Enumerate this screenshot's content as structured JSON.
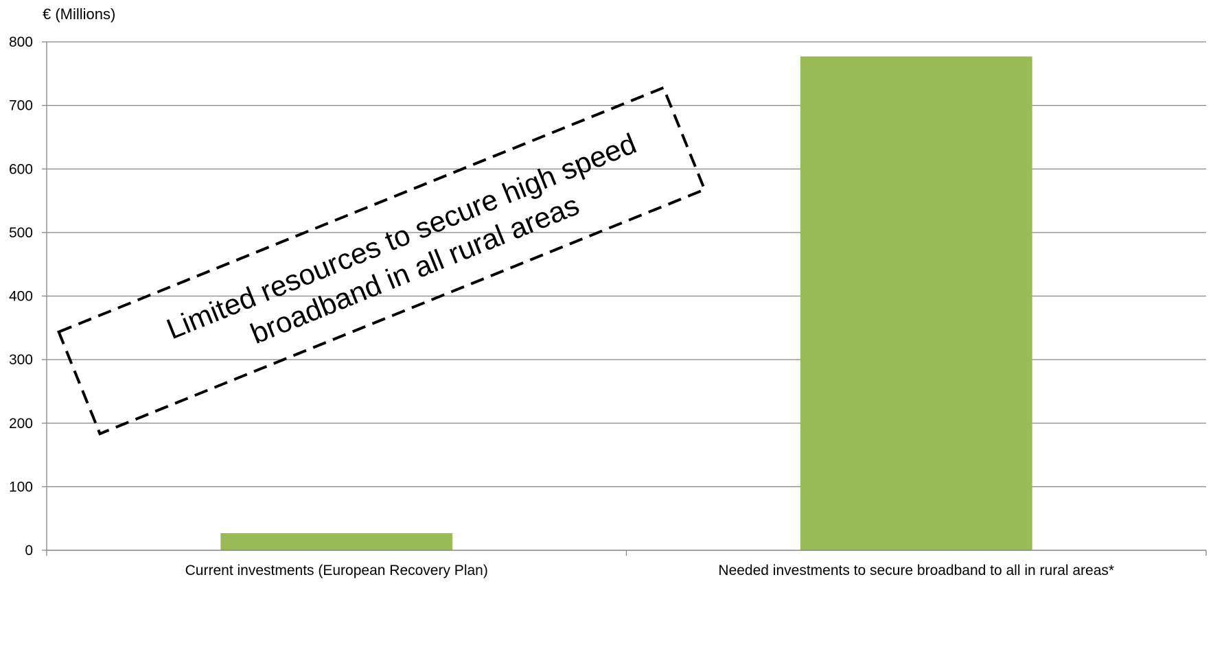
{
  "chart_data": {
    "type": "bar",
    "categories": [
      "Current investments (European Recovery Plan)",
      "Needed investments to secure broadband to all in rural areas*"
    ],
    "values": [
      27,
      777
    ],
    "title": "",
    "ylabel": "€  (Millions)",
    "xlabel": "",
    "ylim": [
      0,
      800
    ],
    "yticks": [
      0,
      100,
      200,
      300,
      400,
      500,
      600,
      700,
      800
    ],
    "grid": true,
    "bar_color": "#9BBB59",
    "annotation": {
      "line1": "Limited resources to secure high speed",
      "line2": "broadband in all rural areas"
    }
  }
}
